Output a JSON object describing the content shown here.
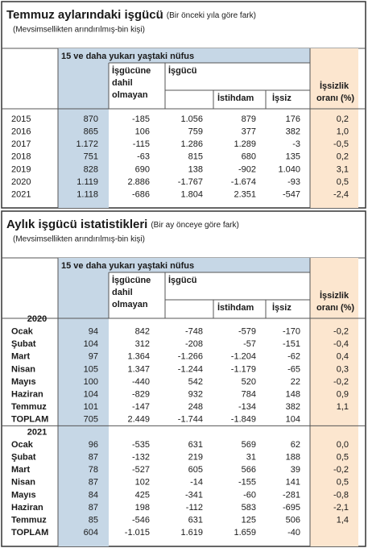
{
  "table1": {
    "title": "Temmuz aylarındaki işgücü",
    "title_note": "(Bir önceki yıla göre fark)",
    "subtitle": "(Mevsimsellikten arındırılmış-bin kişi)",
    "header": {
      "group": "15 ve daha yukarı yaştaki nüfus",
      "not_in_labour": [
        "İşgücüne",
        "dahil",
        "olmayan"
      ],
      "labour": "İşgücü",
      "employed": "İstihdam",
      "unemployed": "İşsiz",
      "rate": [
        "İşsizlik",
        "oranı (%)"
      ]
    },
    "rows": [
      [
        "2015",
        "870",
        "-185",
        "1.056",
        "879",
        "176",
        "0,2"
      ],
      [
        "2016",
        "865",
        "106",
        "759",
        "377",
        "382",
        "1,0"
      ],
      [
        "2017",
        "1.172",
        "-115",
        "1.286",
        "1.289",
        "-3",
        "-0,5"
      ],
      [
        "2018",
        "751",
        "-63",
        "815",
        "680",
        "135",
        "0,2"
      ],
      [
        "2019",
        "828",
        "690",
        "138",
        "-902",
        "1.040",
        "3,1"
      ],
      [
        "2020",
        "1.119",
        "2.886",
        "-1.767",
        "-1.674",
        "-93",
        "0,5"
      ],
      [
        "2021",
        "1.118",
        "-686",
        "1.804",
        "2.351",
        "-547",
        "-2,4"
      ]
    ]
  },
  "table2": {
    "title": "Aylık işgücü istatistikleri",
    "title_note": "(Bir ay önceye göre fark)",
    "subtitle": "(Mevsimsellikten arındırılmış-bin kişi)",
    "header": {
      "group": "15 ve daha yukarı yaştaki nüfus",
      "not_in_labour": [
        "İşgücüne",
        "dahil",
        "olmayan"
      ],
      "labour": "İşgücü",
      "employed": "İstihdam",
      "unemployed": "İşsiz",
      "rate": [
        "İşsizlik",
        "oranı (%)"
      ]
    },
    "sections": [
      {
        "year": "2020",
        "rows": [
          [
            "Ocak",
            "94",
            "842",
            "-748",
            "-579",
            "-170",
            "-0,2"
          ],
          [
            "Şubat",
            "104",
            "312",
            "-208",
            "-57",
            "-151",
            "-0,4"
          ],
          [
            "Mart",
            "97",
            "1.364",
            "-1.266",
            "-1.204",
            "-62",
            "0,4"
          ],
          [
            "Nisan",
            "105",
            "1.347",
            "-1.244",
            "-1.179",
            "-65",
            "0,3"
          ],
          [
            "Mayıs",
            "100",
            "-440",
            "542",
            "520",
            "22",
            "-0,2"
          ],
          [
            "Haziran",
            "104",
            "-829",
            "932",
            "784",
            "148",
            "0,9"
          ],
          [
            "Temmuz",
            "101",
            "-147",
            "248",
            "-134",
            "382",
            "1,1"
          ],
          [
            "TOPLAM",
            "705",
            "2.449",
            "-1.744",
            "-1.849",
            "104"
          ]
        ]
      },
      {
        "year": "2021",
        "rows": [
          [
            "Ocak",
            "96",
            "-535",
            "631",
            "569",
            "62",
            "0,0"
          ],
          [
            "Şubat",
            "87",
            "-132",
            "219",
            "31",
            "188",
            "0,5"
          ],
          [
            "Mart",
            "78",
            "-527",
            "605",
            "566",
            "39",
            "-0,2"
          ],
          [
            "Nisan",
            "87",
            "102",
            "-14",
            "-155",
            "141",
            "0,5"
          ],
          [
            "Mayıs",
            "84",
            "425",
            "-341",
            "-60",
            "-281",
            "-0,8"
          ],
          [
            "Haziran",
            "87",
            "198",
            "-112",
            "583",
            "-695",
            "-2,1"
          ],
          [
            "Temmuz",
            "85",
            "-546",
            "631",
            "125",
            "506",
            "1,4"
          ],
          [
            "TOPLAM",
            "604",
            "-1.015",
            "1.619",
            "1.659",
            "-40"
          ]
        ]
      }
    ]
  }
}
